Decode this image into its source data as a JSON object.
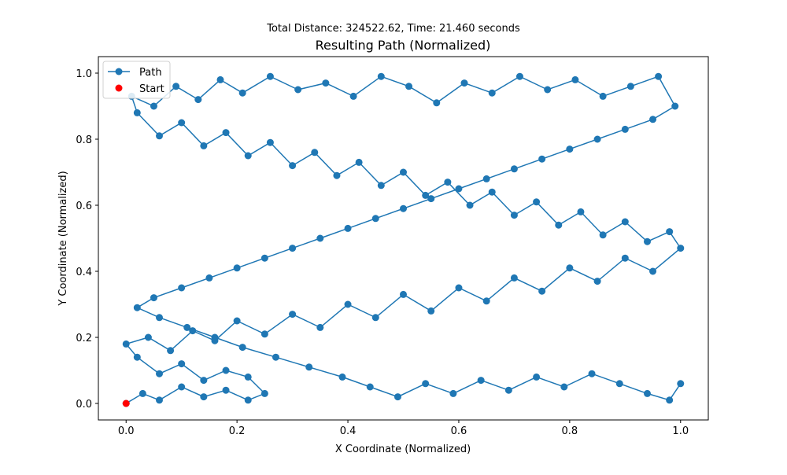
{
  "chart_data": {
    "type": "line",
    "suptitle": "Total Distance: 324522.62, Time: 21.460 seconds",
    "title": "Resulting Path (Normalized)",
    "xlabel": "X Coordinate (Normalized)",
    "ylabel": "Y Coordinate (Normalized)",
    "xlim": [
      -0.05,
      1.05
    ],
    "ylim": [
      -0.05,
      1.05
    ],
    "xticks": [
      0.0,
      0.2,
      0.4,
      0.6,
      0.8,
      1.0
    ],
    "xtick_labels": [
      "0.0",
      "0.2",
      "0.4",
      "0.6",
      "0.8",
      "1.0"
    ],
    "yticks": [
      0.0,
      0.2,
      0.4,
      0.6,
      0.8,
      1.0
    ],
    "ytick_labels": [
      "0.0",
      "0.2",
      "0.4",
      "0.6",
      "0.8",
      "1.0"
    ],
    "grid": false,
    "legend": {
      "location": "upper-left",
      "entries": [
        {
          "label": "Path",
          "marker": "line-circle",
          "color": "#1f77b4"
        },
        {
          "label": "Start",
          "marker": "circle",
          "color": "#ff0000"
        }
      ]
    },
    "series": [
      {
        "name": "Path",
        "color": "#1f77b4",
        "marker": "circle",
        "x": [
          0.0,
          0.03,
          0.06,
          0.1,
          0.14,
          0.18,
          0.22,
          0.25,
          0.22,
          0.18,
          0.14,
          0.1,
          0.06,
          0.02,
          0.0,
          0.04,
          0.08,
          0.12,
          0.16,
          0.2,
          0.25,
          0.3,
          0.35,
          0.4,
          0.45,
          0.5,
          0.55,
          0.6,
          0.65,
          0.7,
          0.75,
          0.8,
          0.85,
          0.9,
          0.95,
          1.0,
          0.98,
          0.94,
          0.9,
          0.86,
          0.82,
          0.78,
          0.74,
          0.7,
          0.66,
          0.62,
          0.58,
          0.54,
          0.5,
          0.46,
          0.42,
          0.38,
          0.34,
          0.3,
          0.26,
          0.22,
          0.18,
          0.14,
          0.1,
          0.06,
          0.02,
          0.01,
          0.05,
          0.09,
          0.13,
          0.17,
          0.21,
          0.26,
          0.31,
          0.36,
          0.41,
          0.46,
          0.51,
          0.56,
          0.61,
          0.66,
          0.71,
          0.76,
          0.81,
          0.86,
          0.91,
          0.96,
          0.99,
          0.95,
          0.9,
          0.85,
          0.8,
          0.75,
          0.7,
          0.65,
          0.6,
          0.55,
          0.5,
          0.45,
          0.4,
          0.35,
          0.3,
          0.25,
          0.2,
          0.15,
          0.1,
          0.05,
          0.02,
          0.06,
          0.11,
          0.16,
          0.21,
          0.27,
          0.33,
          0.39,
          0.44,
          0.49,
          0.54,
          0.59,
          0.64,
          0.69,
          0.74,
          0.79,
          0.84,
          0.89,
          0.94,
          0.98,
          1.0
        ],
        "y": [
          0.0,
          0.03,
          0.01,
          0.05,
          0.02,
          0.04,
          0.01,
          0.03,
          0.08,
          0.1,
          0.07,
          0.12,
          0.09,
          0.14,
          0.18,
          0.2,
          0.16,
          0.22,
          0.19,
          0.25,
          0.21,
          0.27,
          0.23,
          0.3,
          0.26,
          0.33,
          0.28,
          0.35,
          0.31,
          0.38,
          0.34,
          0.41,
          0.37,
          0.44,
          0.4,
          0.47,
          0.52,
          0.49,
          0.55,
          0.51,
          0.58,
          0.54,
          0.61,
          0.57,
          0.64,
          0.6,
          0.67,
          0.63,
          0.7,
          0.66,
          0.73,
          0.69,
          0.76,
          0.72,
          0.79,
          0.75,
          0.82,
          0.78,
          0.85,
          0.81,
          0.88,
          0.93,
          0.9,
          0.96,
          0.92,
          0.98,
          0.94,
          0.99,
          0.95,
          0.97,
          0.93,
          0.99,
          0.96,
          0.91,
          0.97,
          0.94,
          0.99,
          0.95,
          0.98,
          0.93,
          0.96,
          0.99,
          0.9,
          0.86,
          0.83,
          0.8,
          0.77,
          0.74,
          0.71,
          0.68,
          0.65,
          0.62,
          0.59,
          0.56,
          0.53,
          0.5,
          0.47,
          0.44,
          0.41,
          0.38,
          0.35,
          0.32,
          0.29,
          0.26,
          0.23,
          0.2,
          0.17,
          0.14,
          0.11,
          0.08,
          0.05,
          0.02,
          0.06,
          0.03,
          0.07,
          0.04,
          0.08,
          0.05,
          0.09,
          0.06,
          0.03,
          0.01,
          0.06
        ]
      },
      {
        "name": "Start",
        "color": "#ff0000",
        "marker": "circle",
        "x": [
          0.0
        ],
        "y": [
          0.0
        ]
      }
    ]
  }
}
